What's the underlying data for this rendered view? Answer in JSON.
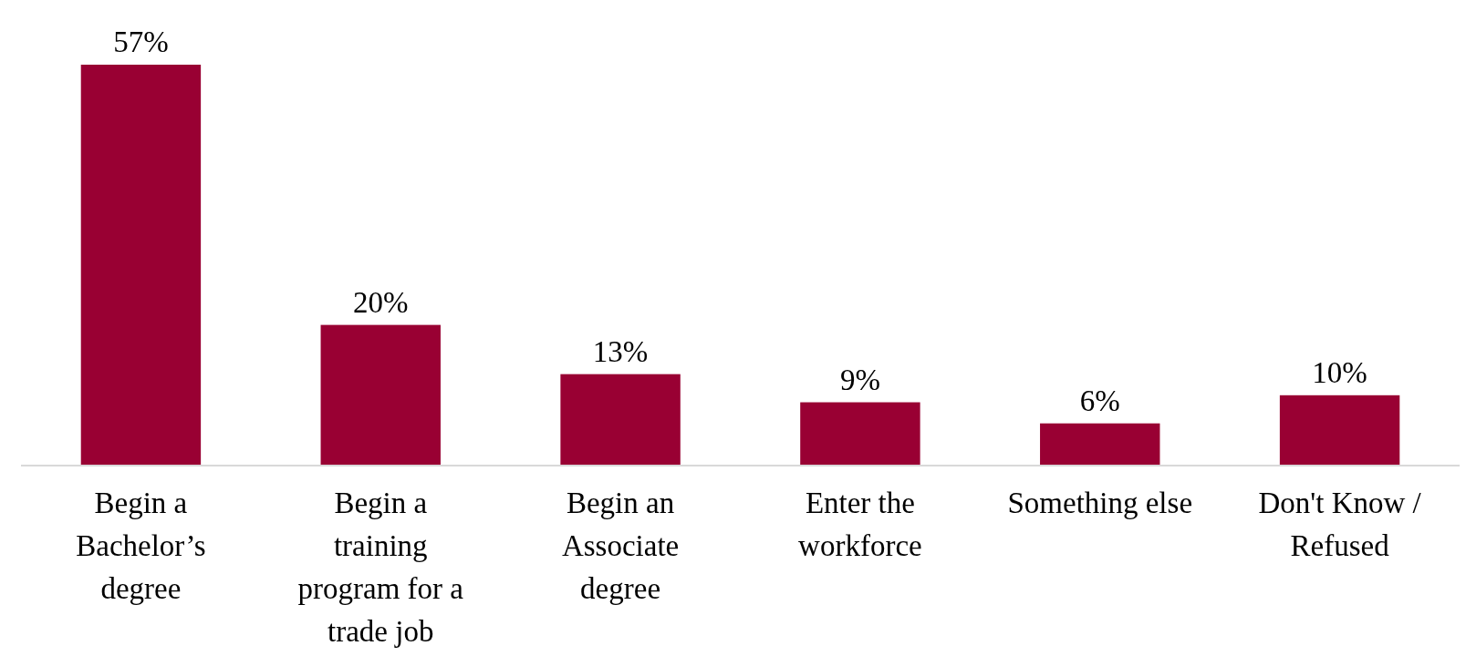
{
  "chart_data": {
    "type": "bar",
    "categories": [
      "Begin a Bachelor’s degree",
      "Begin a training program for a trade job",
      "Begin an Associate degree",
      "Enter the workforce",
      "Something else",
      "Don't Know / Refused"
    ],
    "values": [
      57,
      20,
      13,
      9,
      6,
      10
    ],
    "value_labels": [
      "57%",
      "20%",
      "13%",
      "9%",
      "6%",
      "10%"
    ],
    "color": "#990033"
  }
}
